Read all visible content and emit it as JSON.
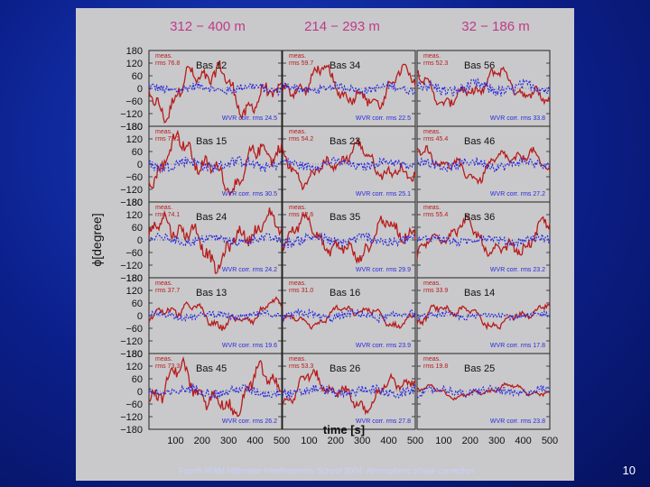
{
  "slide": {
    "footer": "Fourth IRAM Millimeter Interferometry School 2004: Atmospheric phase correction",
    "number": "10"
  },
  "chart_data": {
    "type": "line",
    "column_headers": [
      "312 − 400 m",
      "214 − 293 m",
      "32 − 186 m"
    ],
    "xlabel": "time [s]",
    "ylabel": "ϕ[degree]",
    "xlim": [
      0,
      500
    ],
    "ylim": [
      -180,
      180
    ],
    "x_ticks": [
      100,
      200,
      300,
      400,
      500
    ],
    "y_ticks": [
      180,
      120,
      60,
      0,
      -60,
      -120,
      -180
    ],
    "meas_label": "meas.",
    "rms_prefix": "rms",
    "corr_prefix": "WVR corr. rms",
    "colors": {
      "measured": "#b81c1c",
      "corrected": "#2a2adf"
    },
    "series_legend": [
      "meas.",
      "WVR corr."
    ],
    "panels": [
      {
        "baseline": "Bas 12",
        "meas_rms": "76.8",
        "corr_rms": "24.5"
      },
      {
        "baseline": "Bas 34",
        "meas_rms": "59.7",
        "corr_rms": "22.5"
      },
      {
        "baseline": "Bas 56",
        "meas_rms": "52.3",
        "corr_rms": "33.8"
      },
      {
        "baseline": "Bas 15",
        "meas_rms": "77.2",
        "corr_rms": "30.5"
      },
      {
        "baseline": "Bas 23",
        "meas_rms": "54.2",
        "corr_rms": "25.1"
      },
      {
        "baseline": "Bas 46",
        "meas_rms": "45.4",
        "corr_rms": "27.2"
      },
      {
        "baseline": "Bas 24",
        "meas_rms": "74.1",
        "corr_rms": "24.2"
      },
      {
        "baseline": "Bas 35",
        "meas_rms": "62.6",
        "corr_rms": "29.9"
      },
      {
        "baseline": "Bas 36",
        "meas_rms": "55.4",
        "corr_rms": "23.2"
      },
      {
        "baseline": "Bas 13",
        "meas_rms": "37.7",
        "corr_rms": "19.6"
      },
      {
        "baseline": "Bas 16",
        "meas_rms": "31.0",
        "corr_rms": "23.9"
      },
      {
        "baseline": "Bas 14",
        "meas_rms": "33.9",
        "corr_rms": "17.8"
      },
      {
        "baseline": "Bas 45",
        "meas_rms": "73.3",
        "corr_rms": "26.2"
      },
      {
        "baseline": "Bas 26",
        "meas_rms": "53.3",
        "corr_rms": "27.8"
      },
      {
        "baseline": "Bas 25",
        "meas_rms": "19.8",
        "corr_rms": "23.8"
      }
    ]
  }
}
